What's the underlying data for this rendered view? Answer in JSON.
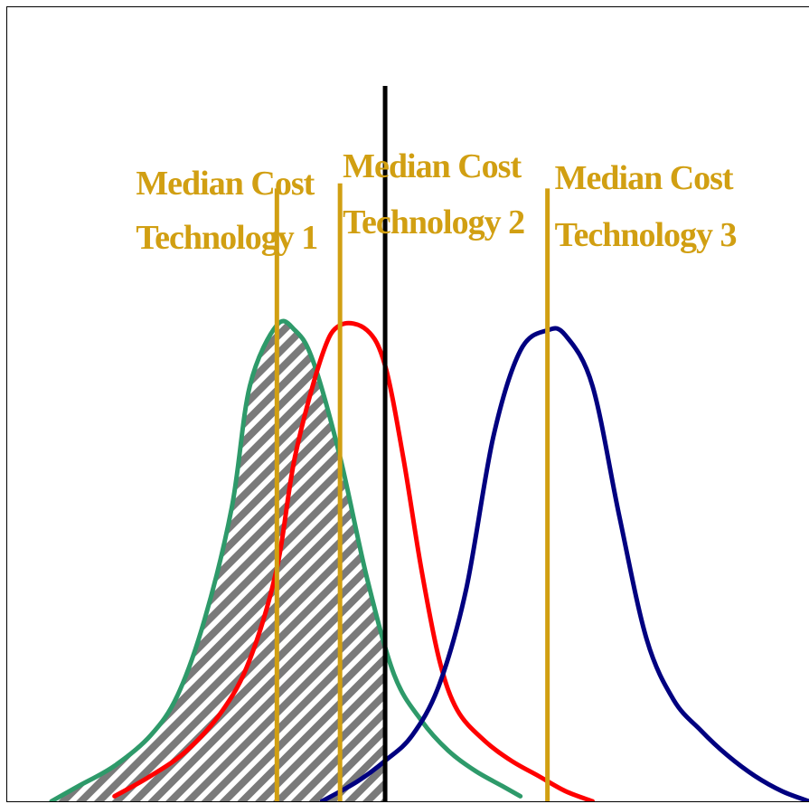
{
  "chart_data": {
    "type": "line",
    "title": "",
    "xlabel": "",
    "ylabel": "",
    "grid": false,
    "shaded_region": {
      "description_visible": false,
      "x_from": 0.0,
      "x_to": 4.0,
      "under_series": "Technology 1"
    },
    "threshold_line": {
      "x": 4.0,
      "color": "#000000"
    },
    "xlim": [
      -0.2,
      8.7
    ],
    "ylim": [
      0,
      1.0
    ],
    "series": [
      {
        "key": "tech1",
        "color": "#2e9a6a",
        "median": 2.8,
        "peak": 0.94,
        "x": [
          0.3,
          0.6,
          1.0,
          1.4,
          1.7,
          2.0,
          2.3,
          2.5,
          2.8,
          3.0,
          3.2,
          3.5,
          3.8,
          4.1,
          4.4,
          4.7,
          5.0,
          5.3,
          5.5
        ],
        "y": [
          0.0,
          0.03,
          0.07,
          0.13,
          0.21,
          0.36,
          0.58,
          0.82,
          0.94,
          0.93,
          0.87,
          0.68,
          0.44,
          0.25,
          0.16,
          0.1,
          0.06,
          0.03,
          0.01
        ]
      },
      {
        "key": "tech2",
        "color": "#ff0000",
        "median": 3.5,
        "peak": 0.94,
        "x": [
          1.0,
          1.4,
          1.8,
          2.2,
          2.5,
          2.8,
          3.0,
          3.3,
          3.5,
          3.8,
          4.0,
          4.2,
          4.4,
          4.6,
          4.8,
          5.1,
          5.4,
          5.7,
          6.0,
          6.3
        ],
        "y": [
          0.01,
          0.05,
          0.1,
          0.18,
          0.28,
          0.46,
          0.68,
          0.88,
          0.94,
          0.93,
          0.86,
          0.68,
          0.46,
          0.28,
          0.18,
          0.12,
          0.08,
          0.05,
          0.02,
          0.0
        ]
      },
      {
        "key": "tech3",
        "color": "#000080",
        "median": 5.8,
        "peak": 0.93,
        "x": [
          3.3,
          3.7,
          4.0,
          4.3,
          4.6,
          4.9,
          5.2,
          5.5,
          5.8,
          6.0,
          6.3,
          6.6,
          6.9,
          7.2,
          7.5,
          7.8,
          8.1,
          8.4,
          8.7
        ],
        "y": [
          0.0,
          0.04,
          0.08,
          0.13,
          0.23,
          0.42,
          0.72,
          0.89,
          0.93,
          0.92,
          0.82,
          0.56,
          0.32,
          0.2,
          0.14,
          0.09,
          0.05,
          0.02,
          0.0
        ]
      }
    ],
    "medians": [
      {
        "x": 2.8,
        "top": 1.21,
        "color": "#d19f12",
        "line1": "Median Cost",
        "line2": "Technology 1"
      },
      {
        "x": 3.5,
        "top": 1.22,
        "color": "#d19f12",
        "line1": "Median Cost",
        "line2": "Technology 2"
      },
      {
        "x": 5.8,
        "top": 1.21,
        "color": "#d19f12",
        "line1": "Median Cost",
        "line2": "Technology 3"
      }
    ]
  }
}
